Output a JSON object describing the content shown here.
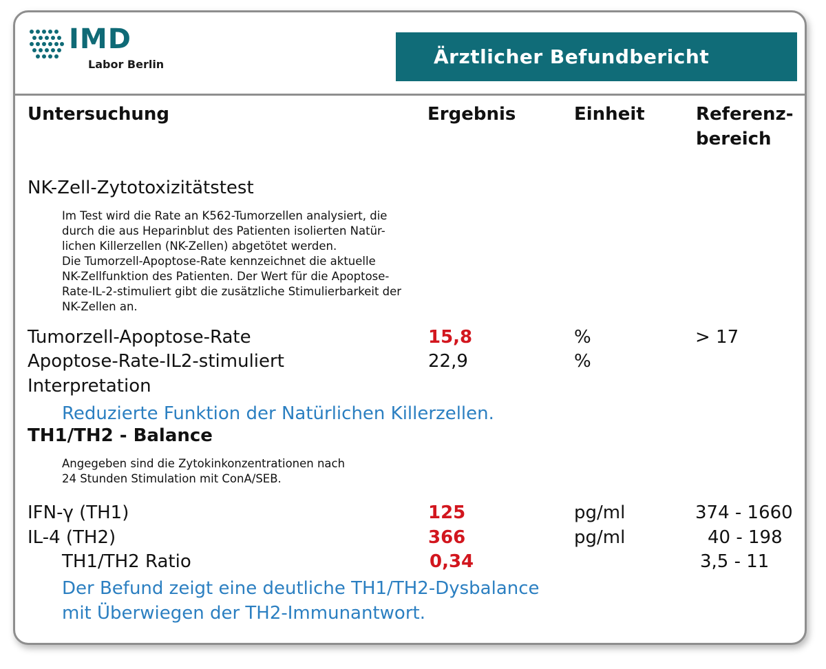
{
  "brand": {
    "name": "IMD",
    "subtitle": "Labor Berlin"
  },
  "report_title": "Ärztlicher Befundbericht",
  "columns": {
    "test": "Untersuchung",
    "result": "Ergebnis",
    "unit": "Einheit",
    "reference_line1": "Referenz-",
    "reference_line2": "bereich"
  },
  "nk_section": {
    "title": "NK-Zell-Zytotoxizitätstest",
    "description_lines": [
      "Im Test wird die Rate an K562-Tumorzellen analysiert, die",
      "durch die aus Heparinblut des Patienten isolierten Natür-",
      "lichen Killerzellen (NK-Zellen) abgetötet werden.",
      "Die Tumorzell-Apoptose-Rate kennzeichnet die aktuelle",
      "NK-Zellfunktion des Patienten. Der Wert für die Apoptose-",
      "Rate-IL-2-stimuliert gibt die zusätzliche Stimulierbarkeit der",
      "NK-Zellen an."
    ],
    "rows": [
      {
        "name": "Tumorzell-Apoptose-Rate",
        "result": "15,8",
        "unit": "%",
        "reference": "> 17"
      },
      {
        "name": "Apoptose-Rate-IL2-stimuliert",
        "result": "22,9",
        "unit": "%",
        "reference": ""
      }
    ],
    "interpretation_label": "Interpretation",
    "interpretation_text": "Reduzierte Funktion der Natürlichen Killerzellen."
  },
  "th_section": {
    "title": "TH1/TH2 - Balance",
    "description_lines": [
      "Angegeben sind die Zytokinkonzentrationen nach",
      "24 Stunden Stimulation mit ConA/SEB."
    ],
    "rows": [
      {
        "name": "IFN-γ (TH1)",
        "result": "125",
        "unit": "pg/ml",
        "reference": "374 - 1660"
      },
      {
        "name": "IL-4 (TH2)",
        "result": "366",
        "unit": "pg/ml",
        "reference": "40 - 198"
      },
      {
        "name": "TH1/TH2 Ratio",
        "result": "0,34",
        "unit": "",
        "reference": "3,5 - 11"
      }
    ],
    "interpretation_lines": [
      "Der Befund zeigt eine deutliche TH1/TH2-Dysbalance",
      "mit Überwiegen der TH2-Immunantwort."
    ]
  },
  "colors": {
    "brand_teal": "#106c78",
    "flag_red": "#d2161e",
    "interpretation_blue": "#2b7fc1"
  }
}
